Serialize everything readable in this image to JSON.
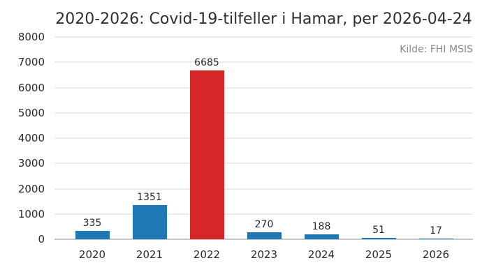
{
  "title": "2020-2026: Covid-19-tilfeller i Hamar, per 2026-04-24",
  "source_note": "Kilde: FHI MSIS",
  "colors": {
    "bar_blue": "#1f77b4",
    "bar_red": "#d62728",
    "gridline": "#ececec",
    "zero_line": "#c7c7c7",
    "text_dark": "#2b2b2b",
    "text_muted": "#8a8a8a",
    "background": "#ffffff"
  },
  "chart_data": {
    "type": "bar",
    "title": "2020-2026: Covid-19-tilfeller i Hamar, per 2026-04-24",
    "categories": [
      "2020",
      "2021",
      "2022",
      "2023",
      "2024",
      "2025",
      "2026"
    ],
    "values": [
      335,
      1351,
      6685,
      270,
      188,
      51,
      17
    ],
    "value_labels": [
      "335",
      "1351",
      "6685",
      "270",
      "188",
      "51",
      "17"
    ],
    "bar_colors": [
      "#1f77b4",
      "#1f77b4",
      "#d62728",
      "#1f77b4",
      "#1f77b4",
      "#1f77b4",
      "#1f77b4"
    ],
    "highlighted_category": "2022",
    "xlabel": "",
    "ylabel": "",
    "ylim": [
      0,
      8000
    ],
    "yticks": [
      0,
      1000,
      2000,
      3000,
      4000,
      5000,
      6000,
      7000,
      8000
    ],
    "ytick_labels": [
      "0",
      "1000",
      "2000",
      "3000",
      "4000",
      "5000",
      "6000",
      "7000",
      "8000"
    ],
    "grid": true,
    "legend": false,
    "annotation": "Kilde: FHI MSIS"
  }
}
